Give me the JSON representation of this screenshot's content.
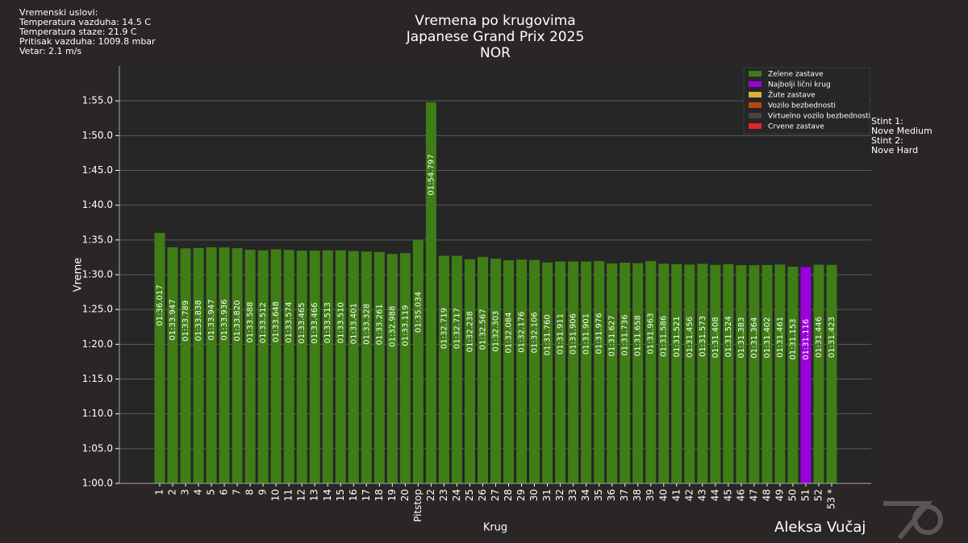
{
  "chart_data": {
    "type": "bar",
    "title": [
      "Vremena po krugovima",
      "Japanese Grand Prix 2025",
      "NOR"
    ],
    "weather": [
      "Vremenski uslovi:",
      "Temperatura vazduha: 14.5 C",
      "Temperatura staze: 21.9 C",
      "Pritisak vazduha: 1009.8 mbar",
      "Vetar: 2.1 m/s"
    ],
    "x_label": "Krug",
    "y_label": "Vreme",
    "author": "Aleksa Vučaj",
    "stints": [
      {
        "label": "Stint 1:",
        "compound": "Nove Medium"
      },
      {
        "label": "Stint 2:",
        "compound": "Nove Hard"
      }
    ],
    "legend": [
      {
        "name": "Zelene zastave",
        "color": "#3f7d17"
      },
      {
        "name": "Najbolji lični krug",
        "color": "#9b00dc"
      },
      {
        "name": "Žute zastave",
        "color": "#d8b23a"
      },
      {
        "name": "Vozilo bezbednosti",
        "color": "#b8460e"
      },
      {
        "name": "Virtuelno vozilo bezbednosti",
        "color": "#4a4340"
      },
      {
        "name": "Crvene zastave",
        "color": "#e02828"
      }
    ],
    "categories": [
      "1",
      "2",
      "3",
      "4",
      "5",
      "6",
      "7",
      "8",
      "9",
      "10",
      "11",
      "12",
      "13",
      "14",
      "15",
      "16",
      "17",
      "18",
      "19",
      "20",
      "Pitstop",
      "22",
      "23",
      "24",
      "25",
      "26",
      "27",
      "28",
      "29",
      "30",
      "31",
      "32",
      "33",
      "34",
      "35",
      "36",
      "37",
      "38",
      "39",
      "40",
      "41",
      "42",
      "43",
      "44",
      "45",
      "46",
      "47",
      "48",
      "49",
      "50",
      "51",
      "52",
      "53 *"
    ],
    "values": [
      96.017,
      93.947,
      93.789,
      93.838,
      93.947,
      93.936,
      93.82,
      93.588,
      93.512,
      93.648,
      93.574,
      93.465,
      93.466,
      93.513,
      93.51,
      93.401,
      93.328,
      93.261,
      92.988,
      93.119,
      95.034,
      114.797,
      92.719,
      92.717,
      92.238,
      92.567,
      92.303,
      92.084,
      92.176,
      92.106,
      91.76,
      91.911,
      91.906,
      91.901,
      91.976,
      91.627,
      91.736,
      91.658,
      91.963,
      91.586,
      91.521,
      91.456,
      91.573,
      91.408,
      91.524,
      91.383,
      91.364,
      91.402,
      91.461,
      91.153,
      91.116,
      91.446,
      91.423
    ],
    "value_labels": [
      "01:36.017",
      "01:33.947",
      "01:33.789",
      "01:33.838",
      "01:33.947",
      "01:33.936",
      "01:33.820",
      "01:33.588",
      "01:33.512",
      "01:33.648",
      "01:33.574",
      "01:33.465",
      "01:33.466",
      "01:33.513",
      "01:33.510",
      "01:33.401",
      "01:33.328",
      "01:33.261",
      "01:32.988",
      "01:33.119",
      "01:35.034",
      "01:54.797",
      "01:32.719",
      "01:32.717",
      "01:32.238",
      "01:32.567",
      "01:32.303",
      "01:32.084",
      "01:32.176",
      "01:32.106",
      "01:31.760",
      "01:31.911",
      "01:31.906",
      "01:31.901",
      "01:31.976",
      "01:31.627",
      "01:31.736",
      "01:31.658",
      "01:31.963",
      "01:31.586",
      "01:31.521",
      "01:31.456",
      "01:31.573",
      "01:31.408",
      "01:31.524",
      "01:31.383",
      "01:31.364",
      "01:31.402",
      "01:31.461",
      "01:31.153",
      "01:31.116",
      "01:31.446",
      "01:31.423"
    ],
    "colors": [
      "#3f7d17",
      "#3f7d17",
      "#3f7d17",
      "#3f7d17",
      "#3f7d17",
      "#3f7d17",
      "#3f7d17",
      "#3f7d17",
      "#3f7d17",
      "#3f7d17",
      "#3f7d17",
      "#3f7d17",
      "#3f7d17",
      "#3f7d17",
      "#3f7d17",
      "#3f7d17",
      "#3f7d17",
      "#3f7d17",
      "#3f7d17",
      "#3f7d17",
      "#3f7d17",
      "#3f7d17",
      "#3f7d17",
      "#3f7d17",
      "#3f7d17",
      "#3f7d17",
      "#3f7d17",
      "#3f7d17",
      "#3f7d17",
      "#3f7d17",
      "#3f7d17",
      "#3f7d17",
      "#3f7d17",
      "#3f7d17",
      "#3f7d17",
      "#3f7d17",
      "#3f7d17",
      "#3f7d17",
      "#3f7d17",
      "#3f7d17",
      "#3f7d17",
      "#3f7d17",
      "#3f7d17",
      "#3f7d17",
      "#3f7d17",
      "#3f7d17",
      "#3f7d17",
      "#3f7d17",
      "#3f7d17",
      "#3f7d17",
      "#9b00dc",
      "#3f7d17",
      "#3f7d17"
    ],
    "ylim": [
      60,
      120
    ],
    "yticks": [
      {
        "value": 60,
        "label": "1:00.0"
      },
      {
        "value": 65,
        "label": "1:05.0"
      },
      {
        "value": 70,
        "label": "1:10.0"
      },
      {
        "value": 75,
        "label": "1:15.0"
      },
      {
        "value": 80,
        "label": "1:20.0"
      },
      {
        "value": 85,
        "label": "1:25.0"
      },
      {
        "value": 90,
        "label": "1:30.0"
      },
      {
        "value": 95,
        "label": "1:35.0"
      },
      {
        "value": 100,
        "label": "1:40.0"
      },
      {
        "value": 105,
        "label": "1:45.0"
      },
      {
        "value": 110,
        "label": "1:50.0"
      },
      {
        "value": 115,
        "label": "1:55.0"
      }
    ],
    "grid": true
  }
}
